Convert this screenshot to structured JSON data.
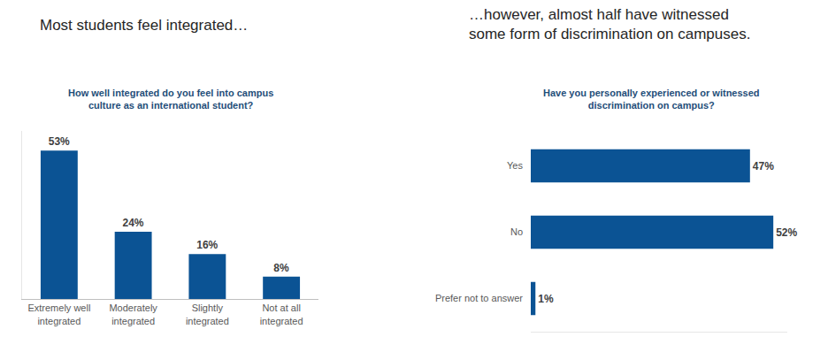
{
  "chart_data": [
    {
      "type": "bar",
      "title": "Most students feel integrated…",
      "subtitle": "How well integrated do you feel into campus culture as an international student?",
      "categories": [
        "Extremely well integrated",
        "Moderately integrated",
        "Slightly integrated",
        "Not at all integrated"
      ],
      "values": [
        53,
        24,
        16,
        8
      ],
      "value_labels": [
        "53%",
        "24%",
        "16%",
        "8%"
      ],
      "color": "#0b5394",
      "ylim": [
        0,
        60
      ],
      "yticks": [],
      "data_labels": true,
      "tick_labels": "x",
      "grid": false
    },
    {
      "type": "bar",
      "orientation": "horizontal",
      "title": "…however, almost half have witnessed some form of discrimination on campuses.",
      "subtitle": "Have you personally experienced or witnessed discrimination on campus?",
      "categories": [
        "Yes",
        "No",
        "Prefer not to answer"
      ],
      "values": [
        47,
        52,
        1
      ],
      "value_labels": [
        "47%",
        "52%",
        "1%"
      ],
      "color": "#0b5394",
      "xlim": [
        0,
        55
      ],
      "xticks": [],
      "data_labels": true,
      "tick_labels": "y",
      "grid": false
    }
  ]
}
